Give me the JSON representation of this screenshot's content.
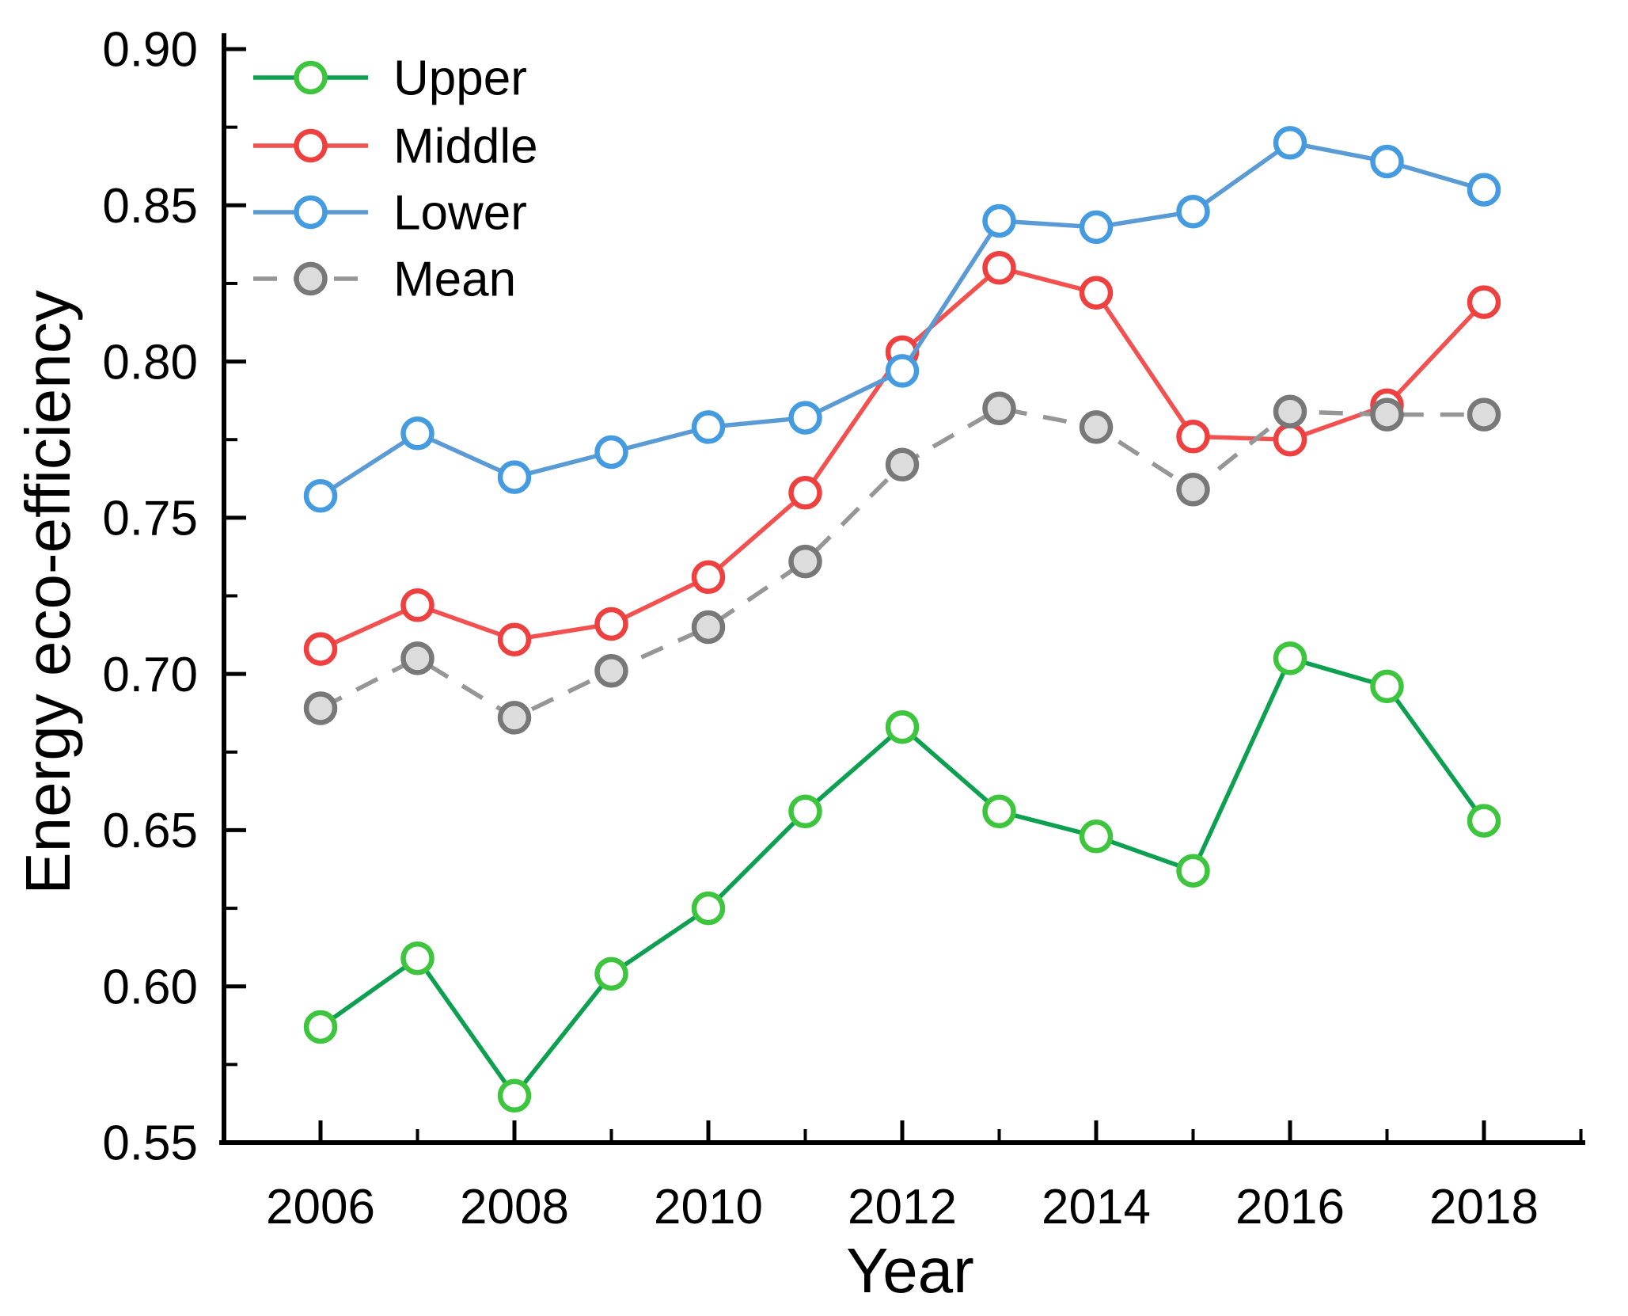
{
  "figure": {
    "background": "#ffffff",
    "text_color": "#000000",
    "axis_color": "#000000"
  },
  "chart_data": {
    "type": "line",
    "title": "",
    "xlabel": "Year",
    "ylabel": "Energy eco-efficiency",
    "grid": false,
    "legend_position": "top-left",
    "xlim": [
      2005,
      2019
    ],
    "ylim": [
      0.55,
      0.9
    ],
    "x": [
      2006,
      2007,
      2008,
      2009,
      2010,
      2011,
      2012,
      2013,
      2014,
      2015,
      2016,
      2017,
      2018
    ],
    "x_major_tick_labels": [
      "2006",
      "2008",
      "2010",
      "2012",
      "2014",
      "2016",
      "2018"
    ],
    "x_major_ticks": [
      2006,
      2008,
      2010,
      2012,
      2014,
      2016,
      2018
    ],
    "x_minor_ticks": [
      2007,
      2009,
      2011,
      2013,
      2015,
      2017,
      2019
    ],
    "y_major_tick_labels": [
      "0.55",
      "0.60",
      "0.65",
      "0.70",
      "0.75",
      "0.80",
      "0.85",
      "0.90"
    ],
    "y_major_ticks": [
      0.55,
      0.6,
      0.65,
      0.7,
      0.75,
      0.8,
      0.85,
      0.9
    ],
    "y_minor_ticks": [
      0.575,
      0.625,
      0.675,
      0.725,
      0.775,
      0.825,
      0.875
    ],
    "series": [
      {
        "name": "Upper",
        "line_color": "#0CA050",
        "marker_edge": "#3DC53D",
        "marker_fill": "#ffffff",
        "dash": "solid",
        "values": [
          0.587,
          0.609,
          0.565,
          0.604,
          0.625,
          0.656,
          0.683,
          0.656,
          0.648,
          0.637,
          0.705,
          0.696,
          0.653
        ]
      },
      {
        "name": "Middle",
        "line_color": "#F25150",
        "marker_edge": "#EE403E",
        "marker_fill": "#ffffff",
        "dash": "solid",
        "values": [
          0.708,
          0.722,
          0.711,
          0.716,
          0.731,
          0.758,
          0.803,
          0.83,
          0.822,
          0.776,
          0.775,
          0.786,
          0.819
        ]
      },
      {
        "name": "Lower",
        "line_color": "#5B9BD5",
        "marker_edge": "#459BE0",
        "marker_fill": "#ffffff",
        "dash": "solid",
        "values": [
          0.757,
          0.777,
          0.763,
          0.771,
          0.779,
          0.782,
          0.797,
          0.845,
          0.843,
          0.848,
          0.87,
          0.864,
          0.855
        ]
      },
      {
        "name": "Mean",
        "line_color": "#969696",
        "marker_edge": "#787878",
        "marker_fill": "#DCDCDC",
        "dash": "dashed",
        "values": [
          0.689,
          0.705,
          0.686,
          0.701,
          0.715,
          0.736,
          0.767,
          0.785,
          0.779,
          0.759,
          0.784,
          0.783,
          0.783
        ]
      }
    ],
    "legend_labels": [
      "Upper",
      "Middle",
      "Lower",
      "Mean"
    ]
  }
}
